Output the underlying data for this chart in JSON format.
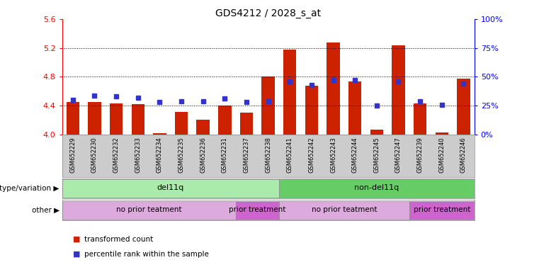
{
  "title": "GDS4212 / 2028_s_at",
  "samples": [
    "GSM652229",
    "GSM652230",
    "GSM652232",
    "GSM652233",
    "GSM652234",
    "GSM652235",
    "GSM652236",
    "GSM652231",
    "GSM652237",
    "GSM652238",
    "GSM652241",
    "GSM652242",
    "GSM652243",
    "GSM652244",
    "GSM652245",
    "GSM652247",
    "GSM652239",
    "GSM652240",
    "GSM652246"
  ],
  "bar_values": [
    4.45,
    4.45,
    4.43,
    4.42,
    4.02,
    4.31,
    4.21,
    4.4,
    4.3,
    4.8,
    5.18,
    4.68,
    5.28,
    4.74,
    4.07,
    5.24,
    4.43,
    4.03,
    4.78
  ],
  "dot_values_pct": [
    30,
    34,
    33,
    32,
    28,
    29,
    29,
    31,
    28,
    29,
    46,
    43,
    47,
    47,
    25,
    46,
    29,
    26,
    44
  ],
  "bar_color": "#cc2200",
  "dot_color": "#3333cc",
  "ylim_left": [
    4.0,
    5.6
  ],
  "ylim_right": [
    0,
    100
  ],
  "yticks_left": [
    4.0,
    4.4,
    4.8,
    5.2,
    5.6
  ],
  "yticks_right": [
    0,
    25,
    50,
    75,
    100
  ],
  "ytick_labels_right": [
    "0%",
    "25%",
    "50%",
    "75%",
    "100%"
  ],
  "grid_values": [
    4.4,
    4.8,
    5.2
  ],
  "genotype_groups": [
    {
      "label": "del11q",
      "start": 0,
      "end": 10,
      "color": "#aaeaaa"
    },
    {
      "label": "non-del11q",
      "start": 10,
      "end": 19,
      "color": "#66cc66"
    }
  ],
  "other_groups": [
    {
      "label": "no prior teatment",
      "start": 0,
      "end": 8,
      "color": "#ddaadd"
    },
    {
      "label": "prior treatment",
      "start": 8,
      "end": 10,
      "color": "#cc66cc"
    },
    {
      "label": "no prior teatment",
      "start": 10,
      "end": 16,
      "color": "#ddaadd"
    },
    {
      "label": "prior treatment",
      "start": 16,
      "end": 19,
      "color": "#cc66cc"
    }
  ],
  "legend_items": [
    {
      "label": "transformed count",
      "color": "#cc2200"
    },
    {
      "label": "percentile rank within the sample",
      "color": "#3333cc"
    }
  ],
  "row_labels": [
    "genotype/variation",
    "other"
  ],
  "background_color": "#ffffff",
  "tick_area_color": "#cccccc"
}
